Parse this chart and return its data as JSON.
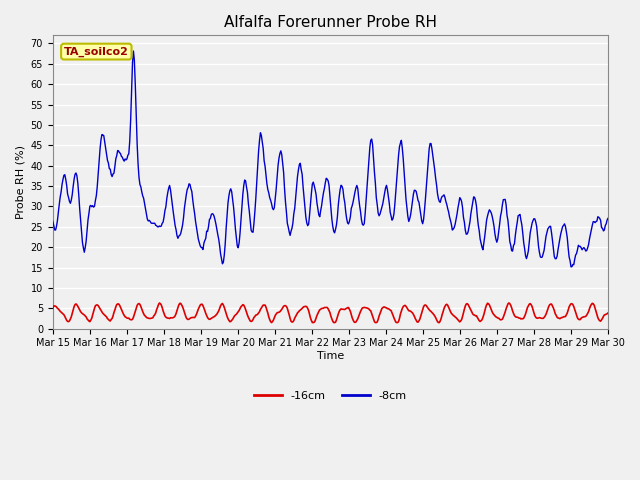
{
  "title": "Alfalfa Forerunner Probe RH",
  "xlabel": "Time",
  "ylabel": "Probe RH (%)",
  "ylim": [
    0,
    72
  ],
  "yticks": [
    0,
    5,
    10,
    15,
    20,
    25,
    30,
    35,
    40,
    45,
    50,
    55,
    60,
    65,
    70
  ],
  "bg_color": "#f0f0f0",
  "plot_bg_color": "#f0f0f0",
  "grid_color": "#ffffff",
  "line_color_8cm": "#0000cc",
  "line_color_16cm": "#dd0000",
  "annotation_text": "TA_soilco2",
  "annotation_bg": "#ffffaa",
  "annotation_border": "#bbbb00",
  "annotation_text_color": "#990000",
  "legend_labels": [
    "-16cm",
    "-8cm"
  ],
  "x_tick_labels": [
    "Mar 15",
    "Mar 16",
    "Mar 17",
    "Mar 18",
    "Mar 19",
    "Mar 20",
    "Mar 21",
    "Mar 22",
    "Mar 23",
    "Mar 24",
    "Mar 25",
    "Mar 26",
    "Mar 27",
    "Mar 28",
    "Mar 29",
    "Mar 30"
  ],
  "title_fontsize": 11,
  "tick_fontsize": 7,
  "label_fontsize": 8,
  "legend_fontsize": 8
}
